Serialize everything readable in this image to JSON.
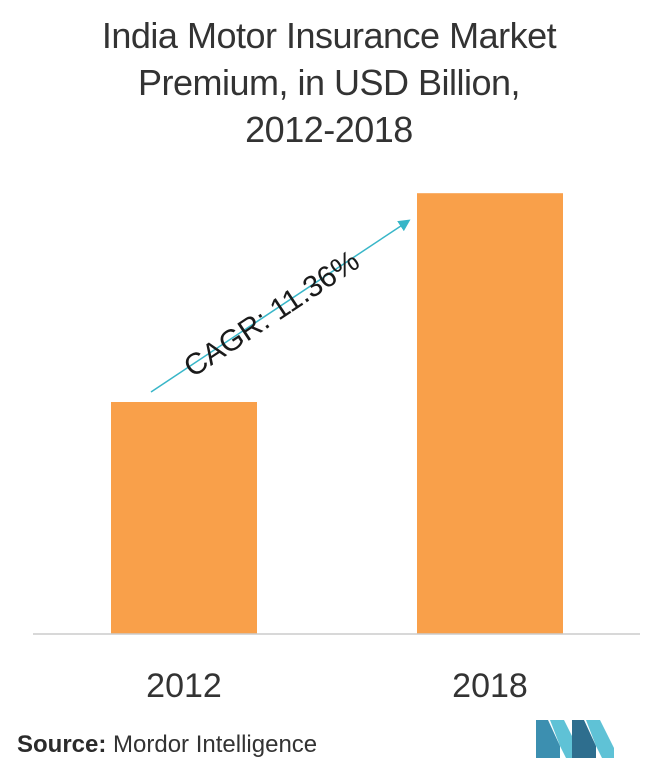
{
  "chart_data": {
    "type": "bar",
    "title_lines": [
      "India Motor Insurance Market",
      "Premium, in USD Billion,",
      "2012-2018"
    ],
    "categories": [
      "2012",
      "2018"
    ],
    "values": [
      1.0,
      1.9
    ],
    "ylim": [
      0,
      2.0
    ],
    "grid": false,
    "legend": "none",
    "annotation": "CAGR: 11.36%",
    "colors": {
      "bar": "#F9A04A",
      "arrow": "#38B6C8",
      "axis": "#CCCCCC",
      "text": "#333333"
    }
  },
  "source": {
    "label": "Source:",
    "text": "Mordor Intelligence"
  },
  "logo": {
    "icon": "mordor-intelligence-logo-icon",
    "colors": [
      "#3C8FB0",
      "#5FC2D6",
      "#2E6E8E"
    ]
  }
}
